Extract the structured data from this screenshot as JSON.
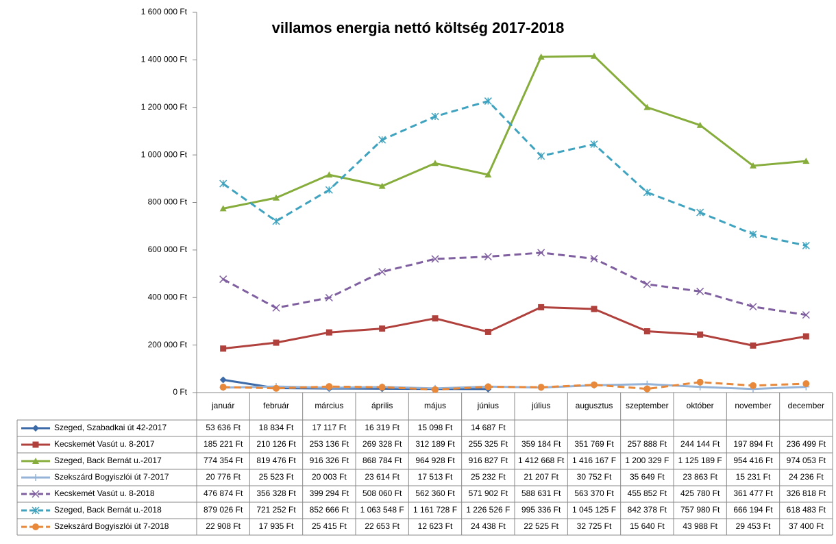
{
  "chart_data": {
    "type": "line",
    "title": "villamos energia nettó költség 2017-2018",
    "categories": [
      "január",
      "február",
      "március",
      "április",
      "május",
      "június",
      "július",
      "augusztus",
      "szeptember",
      "október",
      "november",
      "december"
    ],
    "ylim": [
      0,
      1600000
    ],
    "yticks": [
      {
        "value": 0,
        "label": "0 Ft"
      },
      {
        "value": 200000,
        "label": "200 000 Ft"
      },
      {
        "value": 400000,
        "label": "400 000 Ft"
      },
      {
        "value": 600000,
        "label": "600 000 Ft"
      },
      {
        "value": 800000,
        "label": "800 000 Ft"
      },
      {
        "value": 1000000,
        "label": "1 000 000 Ft"
      },
      {
        "value": 1200000,
        "label": "1 200 000 Ft"
      },
      {
        "value": 1400000,
        "label": "1 400 000 Ft"
      },
      {
        "value": 1600000,
        "label": "1 600 000 Ft"
      }
    ],
    "grid": false,
    "series": [
      {
        "name": "Szeged, Szabadkai út 42-2017",
        "color": "#3c6aa8",
        "marker": "diamond",
        "dash": false,
        "values": [
          53636,
          18834,
          17117,
          16319,
          15098,
          14687,
          null,
          null,
          null,
          null,
          null,
          null
        ],
        "value_labels": [
          "53 636 Ft",
          "18 834 Ft",
          "17 117 Ft",
          "16 319 Ft",
          "15 098 Ft",
          "14 687 Ft",
          null,
          null,
          null,
          null,
          null,
          null
        ]
      },
      {
        "name": "Kecskemét Vasút u. 8-2017",
        "color": "#b0403c",
        "marker": "square",
        "dash": false,
        "values": [
          185221,
          210126,
          253136,
          269328,
          312189,
          255325,
          359184,
          351769,
          257888,
          244144,
          197894,
          236499
        ],
        "value_labels": [
          "185 221 Ft",
          "210 126 Ft",
          "253 136 Ft",
          "269 328 Ft",
          "312 189 Ft",
          "255 325 Ft",
          "359 184 Ft",
          "351 769 Ft",
          "257 888 Ft",
          "244 144 Ft",
          "197 894 Ft",
          "236 499 Ft"
        ]
      },
      {
        "name": "Szeged, Back Bernát u.-2017",
        "color": "#86ad3c",
        "marker": "triangle",
        "dash": false,
        "values": [
          774354,
          819476,
          916326,
          868784,
          964928,
          916827,
          1412668,
          1416167,
          1200329,
          1125189,
          954416,
          974053
        ],
        "value_labels": [
          "774 354 Ft",
          "819 476 Ft",
          "916 326 Ft",
          "868 784 Ft",
          "964 928 Ft",
          "916 827 Ft",
          "1 412 668 Ft",
          "1 416 167 F",
          "1 200 329 F",
          "1 125 189 F",
          "954 416 Ft",
          "974 053 Ft"
        ]
      },
      {
        "name": "Szekszárd Bogyiszlói út 7-2017",
        "color": "#95b3d7",
        "marker": "plus",
        "dash": false,
        "values": [
          20776,
          25523,
          20003,
          23614,
          17513,
          25232,
          21207,
          30752,
          35649,
          23863,
          15231,
          24236
        ],
        "value_labels": [
          "20 776 Ft",
          "25 523 Ft",
          "20 003 Ft",
          "23 614 Ft",
          "17 513 Ft",
          "25 232 Ft",
          "21 207 Ft",
          "30 752 Ft",
          "35 649 Ft",
          "23 863 Ft",
          "15 231 Ft",
          "24 236 Ft"
        ]
      },
      {
        "name": "Kecskemét Vasút u. 8-2018",
        "color": "#7f5fa0",
        "marker": "x",
        "dash": true,
        "values": [
          476874,
          356328,
          399294,
          508060,
          562360,
          571902,
          588631,
          563370,
          455852,
          425780,
          361477,
          326818
        ],
        "value_labels": [
          "476 874 Ft",
          "356 328 Ft",
          "399 294 Ft",
          "508 060 Ft",
          "562 360 Ft",
          "571 902 Ft",
          "588 631 Ft",
          "563 370 Ft",
          "455 852 Ft",
          "425 780 Ft",
          "361 477 Ft",
          "326 818 Ft"
        ]
      },
      {
        "name": "Szeged, Back Bernát u.-2018",
        "color": "#3fa3bf",
        "marker": "star",
        "dash": true,
        "values": [
          879026,
          721252,
          852666,
          1063548,
          1161728,
          1226526,
          995336,
          1045125,
          842378,
          757980,
          666194,
          618483
        ],
        "value_labels": [
          "879 026 Ft",
          "721 252 Ft",
          "852 666 Ft",
          "1 063 548 F",
          "1 161 728 F",
          "1 226 526 F",
          "995 336 Ft",
          "1 045 125 F",
          "842 378 Ft",
          "757 980 Ft",
          "666 194 Ft",
          "618 483 Ft"
        ]
      },
      {
        "name": "Szekszárd Bogyiszlói út 7-2018",
        "color": "#e7883a",
        "marker": "circle",
        "dash": true,
        "values": [
          22908,
          17935,
          25415,
          22653,
          12623,
          24438,
          22525,
          32725,
          15640,
          43988,
          29453,
          37400
        ],
        "value_labels": [
          "22 908 Ft",
          "17 935 Ft",
          "25 415 Ft",
          "22 653 Ft",
          "12 623 Ft",
          "24 438 Ft",
          "22 525 Ft",
          "32 725 Ft",
          "15 640 Ft",
          "43 988 Ft",
          "29 453 Ft",
          "37 400 Ft"
        ]
      }
    ]
  }
}
